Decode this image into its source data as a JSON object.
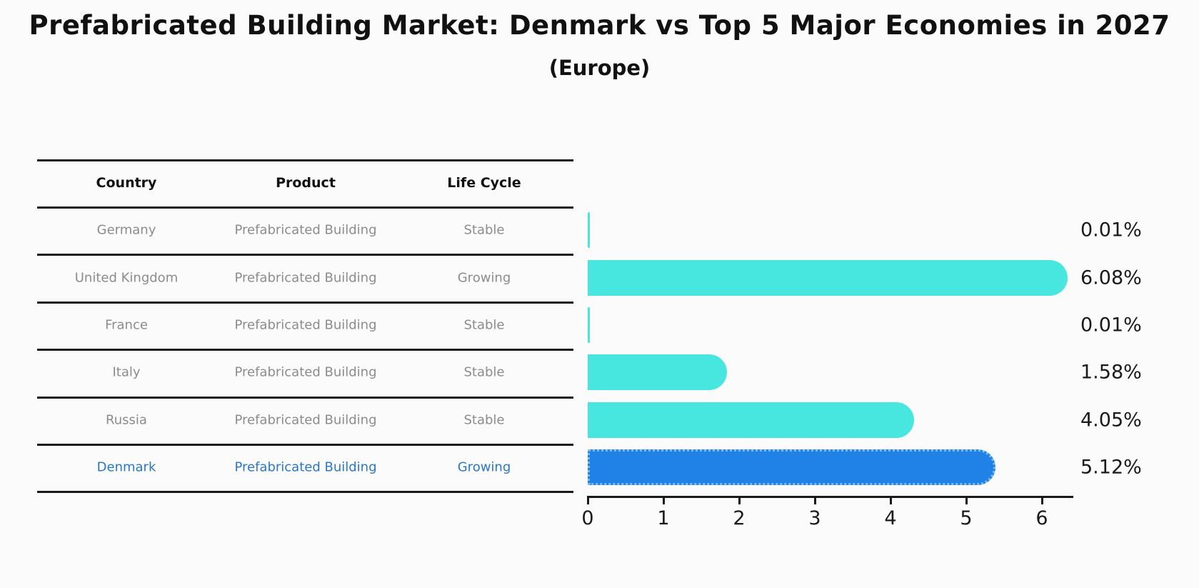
{
  "title": "Prefabricated Building Market: Denmark vs Top 5 Major Economies in 2027",
  "subtitle": "(Europe)",
  "table": {
    "headers": [
      "Country",
      "Product",
      "Life Cycle"
    ],
    "rows": [
      {
        "country": "Germany",
        "product": "Prefabricated Building",
        "life_cycle": "Stable",
        "highlight": false
      },
      {
        "country": "United Kingdom",
        "product": "Prefabricated Building",
        "life_cycle": "Growing",
        "highlight": false
      },
      {
        "country": "France",
        "product": "Prefabricated Building",
        "life_cycle": "Stable",
        "highlight": false
      },
      {
        "country": "Italy",
        "product": "Prefabricated Building",
        "life_cycle": "Stable",
        "highlight": false
      },
      {
        "country": "Russia",
        "product": "Prefabricated Building",
        "life_cycle": "Stable",
        "highlight": false
      },
      {
        "country": "Denmark",
        "product": "Prefabricated Building",
        "life_cycle": "Growing",
        "highlight": true
      }
    ]
  },
  "chart_data": {
    "type": "bar",
    "orientation": "horizontal",
    "title": "Prefabricated Building Market: Denmark vs Top 5 Major Economies in 2027",
    "subtitle": "(Europe)",
    "categories": [
      "Germany",
      "United Kingdom",
      "France",
      "Italy",
      "Russia",
      "Denmark"
    ],
    "values": [
      0.01,
      6.08,
      0.01,
      1.58,
      4.05,
      5.12
    ],
    "value_labels": [
      "0.01%",
      "6.08%",
      "0.01%",
      "1.58%",
      "4.05%",
      "5.12%"
    ],
    "x_ticks": [
      "0",
      "1",
      "2",
      "3",
      "4",
      "5",
      "6"
    ],
    "xlim": [
      0,
      6.4
    ],
    "grid": false,
    "legend": false,
    "highlight_index": 5
  },
  "colors": {
    "bar": "#47e6df",
    "highlight_bar": "#2081e6",
    "highlight_border": "#7bbdf2",
    "row_text": "#8c8c8c",
    "highlight_text": "#2878c8",
    "heading_text": "#111111",
    "axis": "#1a1a1a",
    "background": "#fcfbfc"
  }
}
